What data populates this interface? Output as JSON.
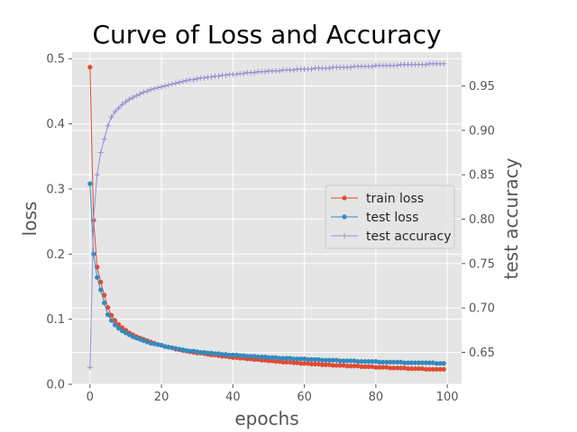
{
  "chart_data": {
    "type": "line",
    "title": "Curve of Loss and Accuracy",
    "xlabel": "epochs",
    "ylabel": "loss",
    "ylabel_right": "test accuracy",
    "xlim": [
      -5,
      104
    ],
    "ylim": [
      0,
      0.51
    ],
    "ylim_right": [
      0.614,
      0.988
    ],
    "xticks": [
      0,
      20,
      40,
      60,
      80,
      100
    ],
    "yticks": [
      0.0,
      0.1,
      0.2,
      0.3,
      0.4,
      0.5
    ],
    "yticks_right": [
      0.65,
      0.7,
      0.75,
      0.8,
      0.85,
      0.9,
      0.95
    ],
    "grid": true,
    "legend_position": "center-right",
    "colors": {
      "train_loss": "#e24a33",
      "test_loss": "#348abd",
      "test_accuracy": "#988ed5",
      "plot_background": "#e5e5e5",
      "grid": "#ffffff"
    },
    "series": [
      {
        "name": "train loss",
        "axis": "left",
        "marker": "circle",
        "start": 0,
        "values": [
          0.487,
          0.252,
          0.18,
          0.157,
          0.137,
          0.118,
          0.106,
          0.098,
          0.092,
          0.087,
          0.083,
          0.079,
          0.076,
          0.073,
          0.071,
          0.069,
          0.067,
          0.065,
          0.063,
          0.061,
          0.06,
          0.058,
          0.057,
          0.056,
          0.054,
          0.053,
          0.052,
          0.051,
          0.05,
          0.049,
          0.048,
          0.048,
          0.047,
          0.046,
          0.045,
          0.045,
          0.044,
          0.043,
          0.043,
          0.042,
          0.041,
          0.041,
          0.04,
          0.04,
          0.039,
          0.039,
          0.038,
          0.038,
          0.037,
          0.037,
          0.036,
          0.036,
          0.035,
          0.035,
          0.034,
          0.034,
          0.034,
          0.033,
          0.033,
          0.032,
          0.032,
          0.032,
          0.031,
          0.031,
          0.031,
          0.03,
          0.03,
          0.03,
          0.029,
          0.029,
          0.029,
          0.029,
          0.028,
          0.028,
          0.028,
          0.028,
          0.027,
          0.027,
          0.027,
          0.027,
          0.026,
          0.026,
          0.026,
          0.026,
          0.025,
          0.025,
          0.025,
          0.025,
          0.025,
          0.024,
          0.024,
          0.024,
          0.024,
          0.024,
          0.023,
          0.023,
          0.023,
          0.023,
          0.023,
          0.023
        ]
      },
      {
        "name": "test loss",
        "axis": "left",
        "marker": "circle",
        "start": 0,
        "values": [
          0.308,
          0.2,
          0.164,
          0.145,
          0.125,
          0.107,
          0.098,
          0.091,
          0.086,
          0.082,
          0.079,
          0.076,
          0.073,
          0.071,
          0.069,
          0.067,
          0.065,
          0.063,
          0.062,
          0.061,
          0.06,
          0.058,
          0.057,
          0.056,
          0.055,
          0.054,
          0.053,
          0.052,
          0.051,
          0.051,
          0.05,
          0.049,
          0.049,
          0.048,
          0.048,
          0.047,
          0.047,
          0.046,
          0.046,
          0.045,
          0.045,
          0.045,
          0.044,
          0.044,
          0.043,
          0.043,
          0.043,
          0.042,
          0.042,
          0.042,
          0.041,
          0.041,
          0.041,
          0.04,
          0.04,
          0.04,
          0.04,
          0.039,
          0.039,
          0.039,
          0.039,
          0.038,
          0.038,
          0.038,
          0.038,
          0.037,
          0.037,
          0.037,
          0.037,
          0.037,
          0.036,
          0.036,
          0.036,
          0.036,
          0.036,
          0.035,
          0.035,
          0.035,
          0.035,
          0.035,
          0.035,
          0.034,
          0.034,
          0.034,
          0.034,
          0.034,
          0.034,
          0.034,
          0.033,
          0.033,
          0.033,
          0.033,
          0.033,
          0.033,
          0.033,
          0.033,
          0.033,
          0.032,
          0.032,
          0.032
        ]
      },
      {
        "name": "test accuracy",
        "axis": "right",
        "marker": "plus",
        "start": 0,
        "values": [
          0.633,
          0.8,
          0.85,
          0.875,
          0.89,
          0.905,
          0.915,
          0.921,
          0.925,
          0.929,
          0.932,
          0.935,
          0.937,
          0.939,
          0.941,
          0.943,
          0.944,
          0.946,
          0.947,
          0.948,
          0.949,
          0.95,
          0.951,
          0.952,
          0.953,
          0.954,
          0.955,
          0.956,
          0.957,
          0.957,
          0.958,
          0.959,
          0.959,
          0.96,
          0.96,
          0.961,
          0.961,
          0.962,
          0.962,
          0.963,
          0.963,
          0.963,
          0.964,
          0.964,
          0.965,
          0.965,
          0.965,
          0.966,
          0.966,
          0.966,
          0.967,
          0.967,
          0.967,
          0.967,
          0.968,
          0.968,
          0.968,
          0.968,
          0.969,
          0.969,
          0.969,
          0.969,
          0.969,
          0.97,
          0.97,
          0.97,
          0.97,
          0.97,
          0.971,
          0.971,
          0.971,
          0.971,
          0.971,
          0.971,
          0.972,
          0.972,
          0.972,
          0.972,
          0.972,
          0.972,
          0.973,
          0.973,
          0.973,
          0.973,
          0.973,
          0.973,
          0.973,
          0.974,
          0.974,
          0.974,
          0.974,
          0.974,
          0.974,
          0.974,
          0.974,
          0.975,
          0.975,
          0.975,
          0.975,
          0.975
        ]
      }
    ]
  }
}
